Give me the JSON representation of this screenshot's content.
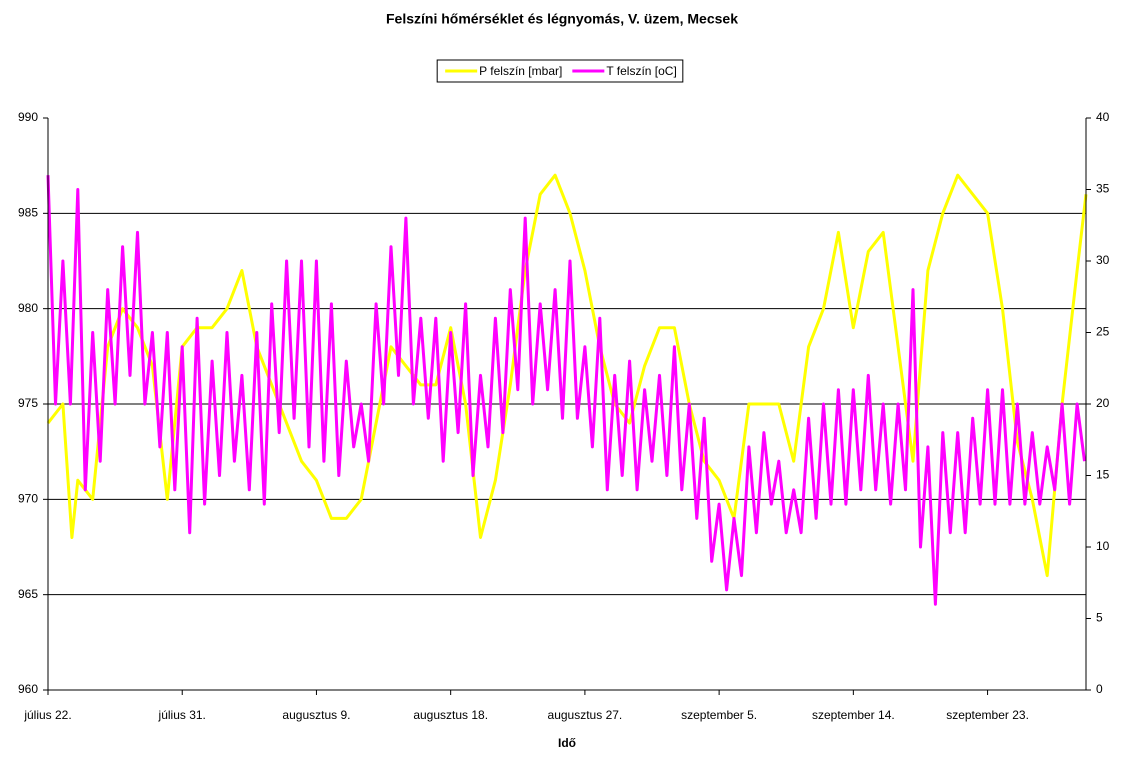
{
  "chart_data": {
    "type": "line",
    "title": "Felszíni hőmérséklet és légnyomás, V. üzem, Mecsek",
    "xlabel": "Idő",
    "xlim": [
      0,
      69.6
    ],
    "xticks": [
      {
        "value": 0,
        "label": "július 22."
      },
      {
        "value": 9,
        "label": "július 31."
      },
      {
        "value": 18,
        "label": "augusztus 9."
      },
      {
        "value": 27,
        "label": "augusztus 18."
      },
      {
        "value": 36,
        "label": "augusztus 27."
      },
      {
        "value": 45,
        "label": "szeptember 5."
      },
      {
        "value": 54,
        "label": "szeptember 14."
      },
      {
        "value": 63,
        "label": "szeptember 23."
      }
    ],
    "ylim": [
      960,
      990
    ],
    "yticks": [
      960,
      965,
      970,
      975,
      980,
      985,
      990
    ],
    "y2lim": [
      0,
      40
    ],
    "y2ticks": [
      0,
      5,
      10,
      15,
      20,
      25,
      30,
      35,
      40
    ],
    "grid": true,
    "legend": "top",
    "series": [
      {
        "name": "P felszín [mbar]",
        "color": "#ffff00",
        "axis": "y",
        "x": [
          0,
          1,
          1.6,
          2,
          3,
          4,
          5,
          6,
          7,
          8,
          9,
          10,
          11,
          12,
          13,
          14,
          15,
          16,
          17,
          18,
          19,
          20,
          21,
          22,
          23,
          24,
          25,
          26,
          27,
          28,
          29,
          30,
          31,
          32,
          33,
          34,
          35,
          36,
          37,
          38,
          39,
          40,
          41,
          42,
          43,
          44,
          45,
          46,
          47,
          48,
          49,
          50,
          51,
          52,
          53,
          54,
          55,
          56,
          57,
          58,
          59,
          60,
          61,
          62,
          63,
          64,
          65,
          66,
          67,
          68,
          69,
          69.6
        ],
        "values": [
          974,
          975,
          968,
          971,
          970,
          978,
          980,
          979,
          977,
          970,
          978,
          979,
          979,
          980,
          982,
          978,
          976,
          974,
          972,
          971,
          969,
          969,
          970,
          974,
          978,
          977,
          976,
          976,
          979,
          975,
          968,
          971,
          976,
          982,
          986,
          987,
          985,
          982,
          978,
          975,
          974,
          977,
          979,
          979,
          975,
          972,
          971,
          969,
          975,
          975,
          975,
          972,
          978,
          980,
          984,
          979,
          983,
          984,
          978,
          972,
          982,
          985,
          987,
          986,
          985,
          980,
          973,
          970,
          966,
          975,
          982,
          986
        ]
      },
      {
        "name": "T felszín [oC]",
        "color": "#ff00ff",
        "axis": "y2",
        "x": [
          0,
          0.5,
          1,
          1.5,
          2,
          2.5,
          3,
          3.5,
          4,
          4.5,
          5,
          5.5,
          6,
          6.5,
          7,
          7.5,
          8,
          8.5,
          9,
          9.5,
          10,
          10.5,
          11,
          11.5,
          12,
          12.5,
          13,
          13.5,
          14,
          14.5,
          15,
          15.5,
          16,
          16.5,
          17,
          17.5,
          18,
          18.5,
          19,
          19.5,
          20,
          20.5,
          21,
          21.5,
          22,
          22.5,
          23,
          23.5,
          24,
          24.5,
          25,
          25.5,
          26,
          26.5,
          27,
          27.5,
          28,
          28.5,
          29,
          29.5,
          30,
          30.5,
          31,
          31.5,
          32,
          32.5,
          33,
          33.5,
          34,
          34.5,
          35,
          35.5,
          36,
          36.5,
          37,
          37.5,
          38,
          38.5,
          39,
          39.5,
          40,
          40.5,
          41,
          41.5,
          42,
          42.5,
          43,
          43.5,
          44,
          44.5,
          45,
          45.5,
          46,
          46.5,
          47,
          47.5,
          48,
          48.5,
          49,
          49.5,
          50,
          50.5,
          51,
          51.5,
          52,
          52.5,
          53,
          53.5,
          54,
          54.5,
          55,
          55.5,
          56,
          56.5,
          57,
          57.5,
          58,
          58.5,
          59,
          59.5,
          60,
          60.5,
          61,
          61.5,
          62,
          62.5,
          63,
          63.5,
          64,
          64.5,
          65,
          65.5,
          66,
          66.5,
          67,
          67.5,
          68,
          68.5,
          69,
          69.5
        ],
        "values": [
          36,
          20,
          30,
          20,
          35,
          14,
          25,
          16,
          28,
          20,
          31,
          22,
          32,
          20,
          25,
          17,
          25,
          14,
          24,
          11,
          26,
          13,
          23,
          15,
          25,
          16,
          22,
          14,
          25,
          13,
          27,
          18,
          30,
          19,
          30,
          17,
          30,
          16,
          27,
          15,
          23,
          17,
          20,
          16,
          27,
          20,
          31,
          22,
          33,
          20,
          26,
          19,
          26,
          16,
          25,
          18,
          27,
          15,
          22,
          17,
          26,
          18,
          28,
          21,
          33,
          20,
          27,
          21,
          28,
          19,
          30,
          19,
          24,
          17,
          26,
          14,
          22,
          15,
          23,
          14,
          21,
          16,
          22,
          15,
          24,
          14,
          20,
          12,
          19,
          9,
          13,
          7,
          12,
          8,
          17,
          11,
          18,
          13,
          16,
          11,
          14,
          11,
          19,
          12,
          20,
          13,
          21,
          13,
          21,
          14,
          22,
          14,
          20,
          13,
          20,
          14,
          28,
          10,
          17,
          6,
          18,
          11,
          18,
          11,
          19,
          13,
          21,
          13,
          21,
          13,
          20,
          13,
          18,
          13,
          17,
          14,
          20,
          13,
          20,
          16
        ]
      }
    ]
  }
}
